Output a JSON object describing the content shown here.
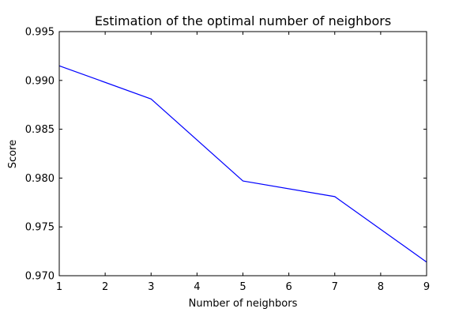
{
  "chart_data": {
    "type": "line",
    "title": "Estimation of the optimal number of neighbors",
    "xlabel": "Number of neighbors",
    "ylabel": "Score",
    "xlim": [
      1,
      9
    ],
    "ylim": [
      0.97,
      0.995
    ],
    "xticks": [
      1,
      2,
      3,
      4,
      5,
      6,
      7,
      8,
      9
    ],
    "xtick_labels": [
      "1",
      "2",
      "3",
      "4",
      "5",
      "6",
      "7",
      "8",
      "9"
    ],
    "yticks": [
      0.97,
      0.975,
      0.98,
      0.985,
      0.99,
      0.995
    ],
    "ytick_labels": [
      "0.970",
      "0.975",
      "0.980",
      "0.985",
      "0.990",
      "0.995"
    ],
    "grid": false,
    "series": [
      {
        "color": "#0000ff",
        "x": [
          1,
          3,
          5,
          7,
          9
        ],
        "y": [
          0.9915,
          0.9881,
          0.9797,
          0.9781,
          0.9714
        ]
      }
    ]
  }
}
